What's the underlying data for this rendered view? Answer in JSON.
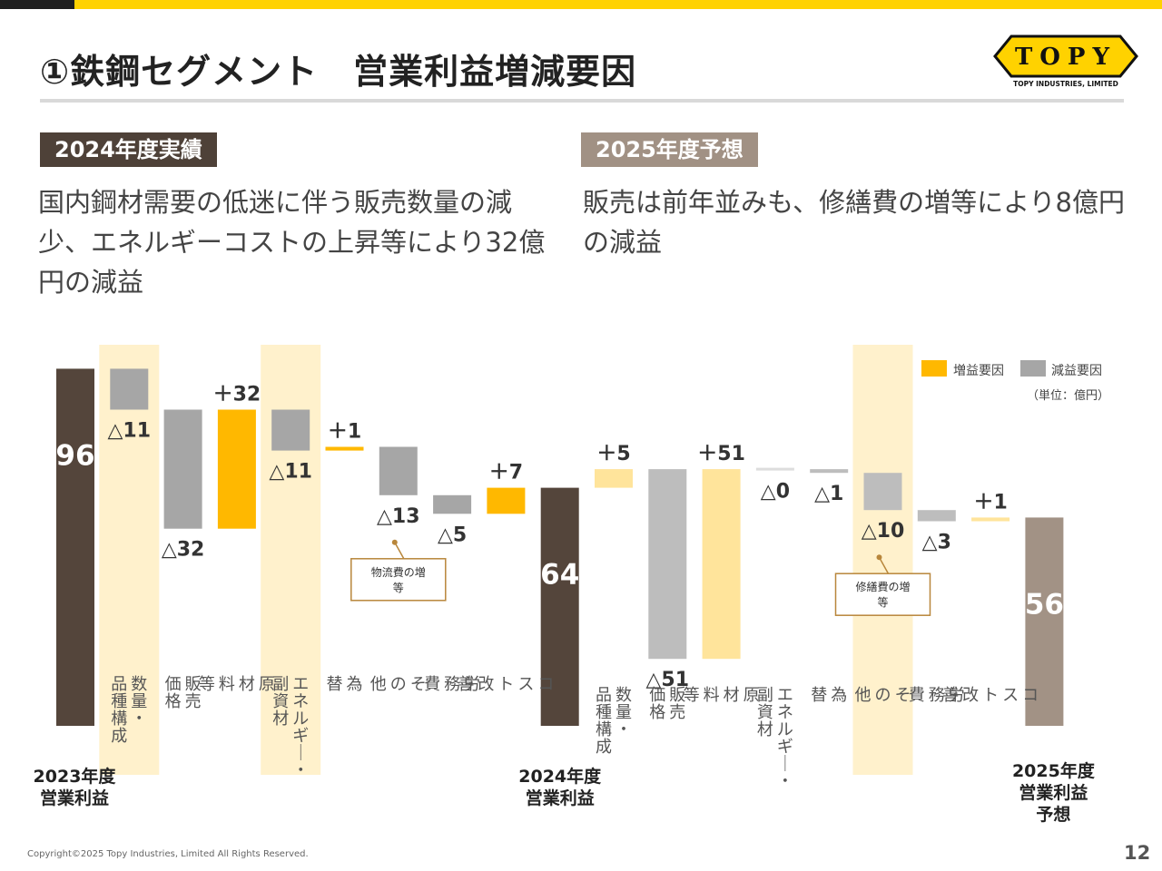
{
  "header": {
    "title": "①鉄鋼セグメント　営業利益増減要因",
    "logo_text": "TOPY",
    "logo_subtext": "TOPY INDUSTRIES, LIMITED"
  },
  "sections": {
    "actual_label": "2024年度実績",
    "actual_text": "国内鋼材需要の低迷に伴う販売数量の減少、エネルギーコストの上昇等により32億円の減益",
    "forecast_label": "2025年度予想",
    "forecast_text": "販売は前年並みも、修繕費の増等により8億円の減益"
  },
  "chart_data": {
    "type": "bar",
    "subtype": "waterfall",
    "unit_label": "（単位：億円）",
    "legend": {
      "increase": "増益要因",
      "decrease": "減益要因",
      "position": "top-right"
    },
    "colors": {
      "total_actual": "#54453b",
      "total_forecast": "#a29285",
      "increase_actual": "#ffb800",
      "decrease_actual": "#a6a6a6",
      "increase_forecast": "#ffe49b",
      "decrease_forecast": "#bdbdbd",
      "highlight": "#fff1cc",
      "note_border": "#b8863b"
    },
    "series": [
      {
        "name": "2023年度営業利益",
        "kind": "total",
        "period": "actual",
        "value": 96,
        "value_label": "96",
        "category": "2023年度\n営業利益"
      },
      {
        "name": "数量・品種構成",
        "kind": "delta",
        "period": "actual",
        "value": -11,
        "value_label": "△11",
        "category": "数量・\n品種構成",
        "highlight": true
      },
      {
        "name": "販売価格",
        "kind": "delta",
        "period": "actual",
        "value": -32,
        "value_label": "△32",
        "category": "販売\n価格"
      },
      {
        "name": "原材料等",
        "kind": "delta",
        "period": "actual",
        "value": 32,
        "value_label": "＋32",
        "category": "原\n材\n料\n等"
      },
      {
        "name": "エネルギー・副資材",
        "kind": "delta",
        "period": "actual",
        "value": -11,
        "value_label": "△11",
        "category": "エネルギー・\n副資材",
        "highlight": true
      },
      {
        "name": "為替",
        "kind": "delta",
        "period": "actual",
        "value": 1,
        "value_label": "＋1",
        "category": "為\n替"
      },
      {
        "name": "その他",
        "kind": "delta",
        "period": "actual",
        "value": -13,
        "value_label": "△13",
        "category": "そ\nの\n他",
        "note": "物流費の増等"
      },
      {
        "name": "労務費",
        "kind": "delta",
        "period": "actual",
        "value": -5,
        "value_label": "△5",
        "category": "労\n務\n費"
      },
      {
        "name": "コスト改善",
        "kind": "delta",
        "period": "actual",
        "value": 7,
        "value_label": "＋7",
        "category": "コ\nス\nト\n改\n善"
      },
      {
        "name": "2024年度営業利益",
        "kind": "total",
        "period": "actual",
        "value": 64,
        "value_label": "64",
        "category": "2024年度\n営業利益"
      },
      {
        "name": "数量・品種構成",
        "kind": "delta",
        "period": "forecast",
        "value": 5,
        "value_label": "＋5",
        "category": "数量・\n品種構成"
      },
      {
        "name": "販売価格",
        "kind": "delta",
        "period": "forecast",
        "value": -51,
        "value_label": "△51",
        "category": "販売\n価格"
      },
      {
        "name": "原材料等",
        "kind": "delta",
        "period": "forecast",
        "value": 51,
        "value_label": "＋51",
        "category": "原\n材\n料\n等"
      },
      {
        "name": "エネルギー・副資材",
        "kind": "delta",
        "period": "forecast",
        "value": 0,
        "value_label": "△0",
        "category": "エネルギー・\n副資材"
      },
      {
        "name": "為替",
        "kind": "delta",
        "period": "forecast",
        "value": -1,
        "value_label": "△1",
        "category": "為\n替"
      },
      {
        "name": "その他",
        "kind": "delta",
        "period": "forecast",
        "value": -10,
        "value_label": "△10",
        "category": "そ\nの\n他",
        "highlight": true,
        "note": "修繕費の増等"
      },
      {
        "name": "労務費",
        "kind": "delta",
        "period": "forecast",
        "value": -3,
        "value_label": "△3",
        "category": "労\n務\n費"
      },
      {
        "name": "コスト改善",
        "kind": "delta",
        "period": "forecast",
        "value": 1,
        "value_label": "＋1",
        "category": "コ\nス\nト\n改\n善"
      },
      {
        "name": "2025年度営業利益予想",
        "kind": "total",
        "period": "forecast",
        "value": 56,
        "value_label": "56",
        "category": "2025年度\n営業利益\n予想"
      }
    ]
  },
  "footer": {
    "copyright": "Copyright©2025 Topy Industries, Limited All Rights Reserved.",
    "page_number": "12"
  }
}
